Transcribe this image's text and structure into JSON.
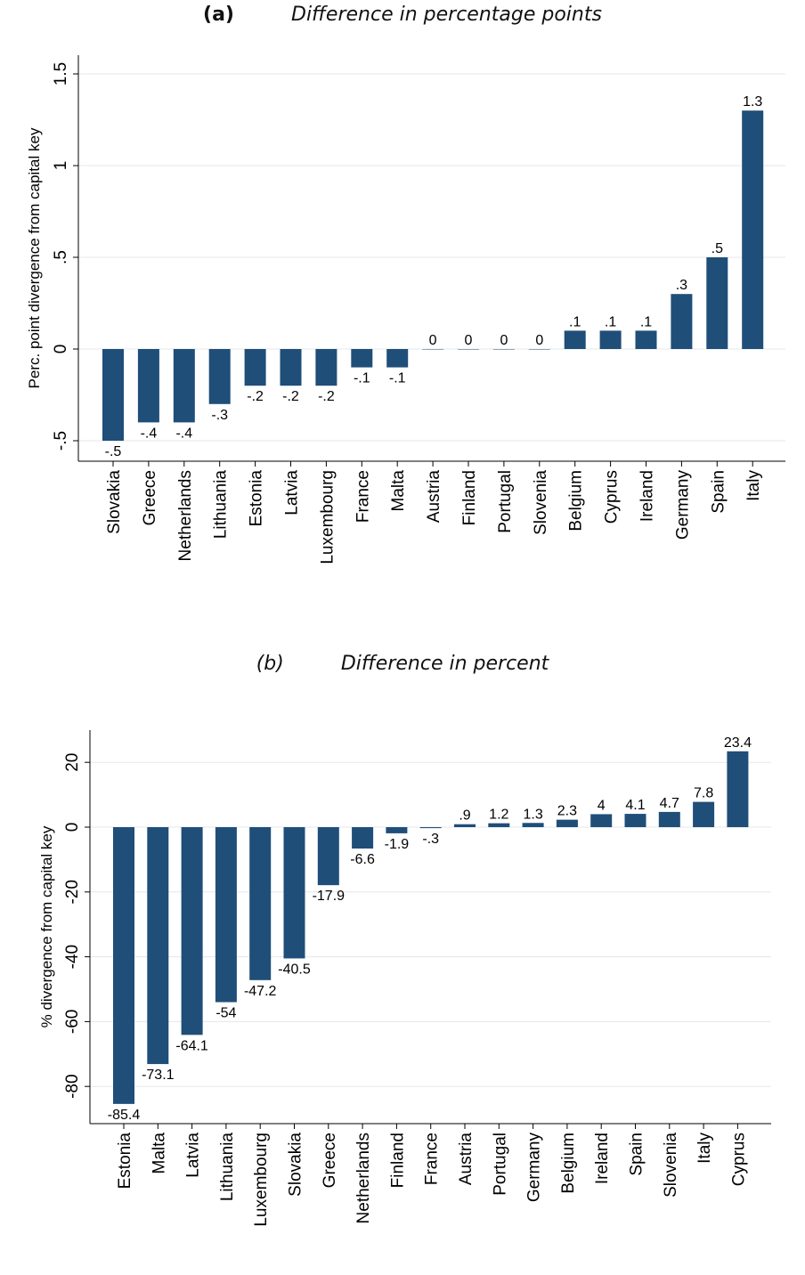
{
  "chart_data": [
    {
      "type": "bar",
      "label": "(a)",
      "title": "Difference in percentage points",
      "ylabel": "Perc. point divergence from capital key",
      "xlabel": "",
      "ylim": [
        -0.5,
        1.5
      ],
      "yticks": [
        "-.5",
        "0",
        ".5",
        "1",
        "1.5"
      ],
      "grid": true,
      "categories": [
        "Slovakia",
        "Greece",
        "Netherlands",
        "Lithuania",
        "Estonia",
        "Latvia",
        "Luxembourg",
        "France",
        "Malta",
        "Austria",
        "Finland",
        "Portugal",
        "Slovenia",
        "Belgium",
        "Cyprus",
        "Ireland",
        "Germany",
        "Spain",
        "Italy"
      ],
      "values": [
        -0.5,
        -0.4,
        -0.4,
        -0.3,
        -0.2,
        -0.2,
        -0.2,
        -0.1,
        -0.1,
        0,
        0,
        0,
        0,
        0.1,
        0.1,
        0.1,
        0.3,
        0.5,
        1.3
      ],
      "data_labels": [
        "-.5",
        "-.4",
        "-.4",
        "-.3",
        "-.2",
        "-.2",
        "-.2",
        "-.1",
        "-.1",
        "0",
        "0",
        "0",
        "0",
        ".1",
        ".1",
        ".1",
        ".3",
        ".5",
        "1.3"
      ],
      "color": "#1f4e79"
    },
    {
      "type": "bar",
      "label": "(b)",
      "title": "Difference in percent",
      "ylabel": "% divergence from capital key",
      "xlabel": "",
      "ylim": [
        -90,
        30
      ],
      "yticks": [
        "-80",
        "-60",
        "-40",
        "-20",
        "0",
        "20"
      ],
      "grid": true,
      "categories": [
        "Estonia",
        "Malta",
        "Latvia",
        "Lithuania",
        "Luxembourg",
        "Slovakia",
        "Greece",
        "Netherlands",
        "Finland",
        "France",
        "Austria",
        "Portugal",
        "Germany",
        "Belgium",
        "Ireland",
        "Spain",
        "Slovenia",
        "Italy",
        "Cyprus"
      ],
      "values": [
        -85.4,
        -73.1,
        -64.1,
        -54,
        -47.2,
        -40.5,
        -17.9,
        -6.6,
        -1.9,
        -0.3,
        0.9,
        1.2,
        1.3,
        2.3,
        4,
        4.1,
        4.7,
        7.8,
        23.4
      ],
      "data_labels": [
        "-85.4",
        "-73.1",
        "-64.1",
        "-54",
        "-47.2",
        "-40.5",
        "-17.9",
        "-6.6",
        "-1.9",
        "-.3",
        ".9",
        "1.2",
        "1.3",
        "2.3",
        "4",
        "4.1",
        "4.7",
        "7.8",
        "23.4"
      ],
      "color": "#1f4e79"
    }
  ]
}
